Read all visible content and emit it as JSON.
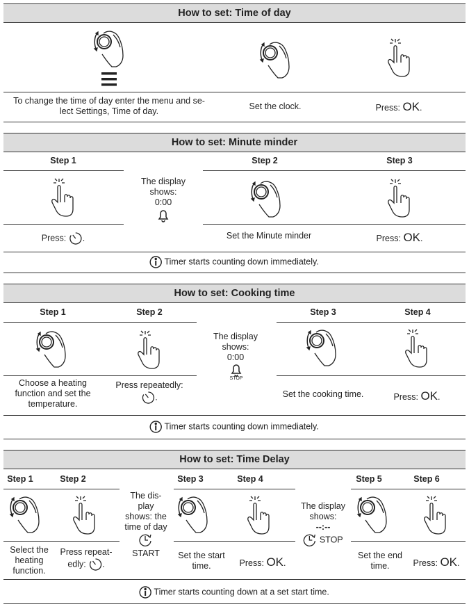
{
  "time_of_day": {
    "title": "How to set: Time of day",
    "col1": "To change the time of day enter the menu and se-",
    "col1b": "lect Settings, Time of day.",
    "col2": "Set the clock.",
    "col3_press": "Press:",
    "ok": "OK"
  },
  "minute_minder": {
    "title": "How to set: Minute minder",
    "step1": "Step 1",
    "step2": "Step 2",
    "step3": "Step 3",
    "display1": "The display",
    "display2": "shows:",
    "display3": "0:00",
    "text1": "Press:",
    "text2": "Set the Minute minder",
    "text3": "Press:",
    "ok": "OK",
    "info": "Timer starts counting down immediately."
  },
  "cooking_time": {
    "title": "How to set: Cooking time",
    "step1": "Step 1",
    "step2": "Step 2",
    "step3": "Step 3",
    "step4": "Step 4",
    "display1": "The display",
    "display2": "shows:",
    "display3": "0:00",
    "stop": "STOP",
    "text1a": "Choose a heating",
    "text1b": "function and set the",
    "text1c": "temperature.",
    "text2": "Press repeatedly:",
    "text3": "Set the cooking time.",
    "text4": "Press:",
    "ok": "OK",
    "info": "Timer starts counting down immediately."
  },
  "time_delay": {
    "title": "How to set: Time Delay",
    "step1": "Step 1",
    "step2": "Step 2",
    "step3": "Step 3",
    "step4": "Step 4",
    "step5": "Step 5",
    "step6": "Step 6",
    "displayA1": "The dis-",
    "displayA2": "play",
    "displayA3": "shows: the",
    "displayA4": "time of day",
    "start": "START",
    "displayB1": "The display",
    "displayB2": "shows:",
    "displayB3": "--:--",
    "stop": "STOP",
    "text1a": "Select the",
    "text1b": "heating",
    "text1c": "function.",
    "text2a": "Press repeat-",
    "text2b": "edly:",
    "text3a": "Set the start",
    "text3b": "time.",
    "text4": "Press:",
    "text5a": "Set the end",
    "text5b": "time.",
    "text6": "Press:",
    "ok": "OK",
    "info": "Timer starts counting down at a set start time."
  }
}
